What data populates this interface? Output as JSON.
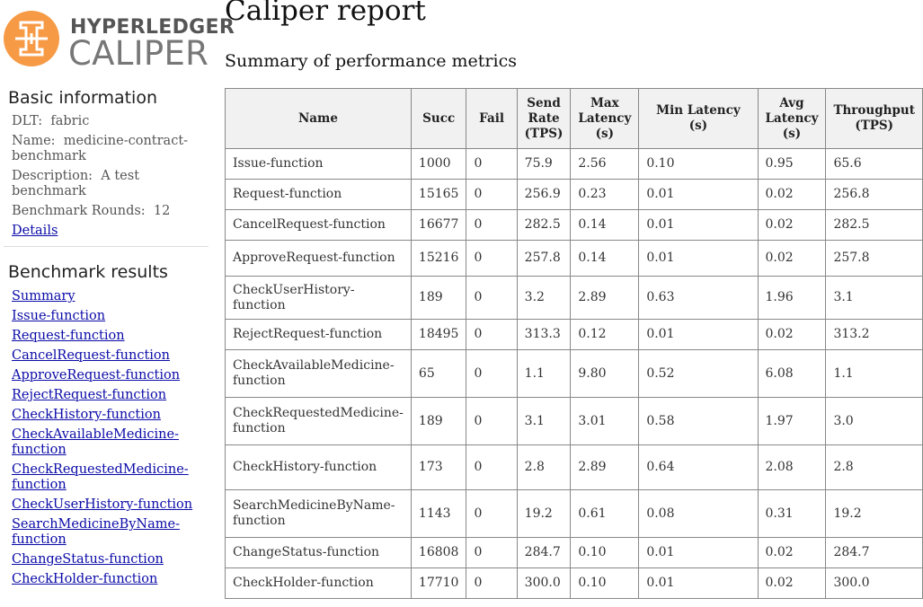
{
  "logo": {
    "line1": "HYPERLEDGER",
    "line2": "CALIPER"
  },
  "report": {
    "title": "Caliper report",
    "subtitle": "Summary of performance metrics"
  },
  "basic": {
    "heading": "Basic information",
    "dlt_label": "DLT:",
    "dlt_value": "fabric",
    "name_label": "Name:",
    "name_value": "medicine-contract-benchmark",
    "desc_label": "Description:",
    "desc_value": "A test benchmark",
    "rounds_label": "Benchmark Rounds:",
    "rounds_value": "12",
    "details_link": "Details"
  },
  "results": {
    "heading": "Benchmark results",
    "links": [
      "Summary",
      "Issue-function",
      "Request-function",
      "CancelRequest-function",
      "ApproveRequest-function",
      "RejectRequest-function",
      "CheckHistory-function",
      "CheckAvailableMedicine-function",
      "CheckRequestedMedicine-function",
      "CheckUserHistory-function",
      "SearchMedicineByName-function",
      "ChangeStatus-function",
      "CheckHolder-function"
    ]
  },
  "table": {
    "headers": [
      "Name",
      "Succ",
      "Fail",
      "Send Rate (TPS)",
      "Max Latency (s)",
      "Min Latency (s)",
      "Avg Latency (s)",
      "Throughput (TPS)"
    ],
    "rows": [
      [
        "Issue-function",
        "1000",
        "0",
        "75.9",
        "2.56",
        "0.10",
        "0.95",
        "65.6"
      ],
      [
        "Request-function",
        "15165",
        "0",
        "256.9",
        "0.23",
        "0.01",
        "0.02",
        "256.8"
      ],
      [
        "CancelRequest-function",
        "16677",
        "0",
        "282.5",
        "0.14",
        "0.01",
        "0.02",
        "282.5"
      ],
      [
        "ApproveRequest-function",
        "15216",
        "0",
        "257.8",
        "0.14",
        "0.01",
        "0.02",
        "257.8"
      ],
      [
        "CheckUserHistory-function",
        "189",
        "0",
        "3.2",
        "2.89",
        "0.63",
        "1.96",
        "3.1"
      ],
      [
        "RejectRequest-function",
        "18495",
        "0",
        "313.3",
        "0.12",
        "0.01",
        "0.02",
        "313.2"
      ],
      [
        "CheckAvailableMedicine-function",
        "65",
        "0",
        "1.1",
        "9.80",
        "0.52",
        "6.08",
        "1.1"
      ],
      [
        "CheckRequestedMedicine-function",
        "189",
        "0",
        "3.1",
        "3.01",
        "0.58",
        "1.97",
        "3.0"
      ],
      [
        "CheckHistory-function",
        "173",
        "0",
        "2.8",
        "2.89",
        "0.64",
        "2.08",
        "2.8"
      ],
      [
        "SearchMedicineByName-function",
        "1143",
        "0",
        "19.2",
        "0.61",
        "0.08",
        "0.31",
        "19.2"
      ],
      [
        "ChangeStatus-function",
        "16808",
        "0",
        "284.7",
        "0.10",
        "0.01",
        "0.02",
        "284.7"
      ],
      [
        "CheckHolder-function",
        "17710",
        "0",
        "300.0",
        "0.10",
        "0.01",
        "0.02",
        "300.0"
      ]
    ]
  },
  "colors": {
    "logo_orange": "#f79a45",
    "link": "#0b0ba8",
    "header_bg": "#f1f1f1"
  },
  "icons": [
    "hyperledger-caliper-logo-icon"
  ]
}
